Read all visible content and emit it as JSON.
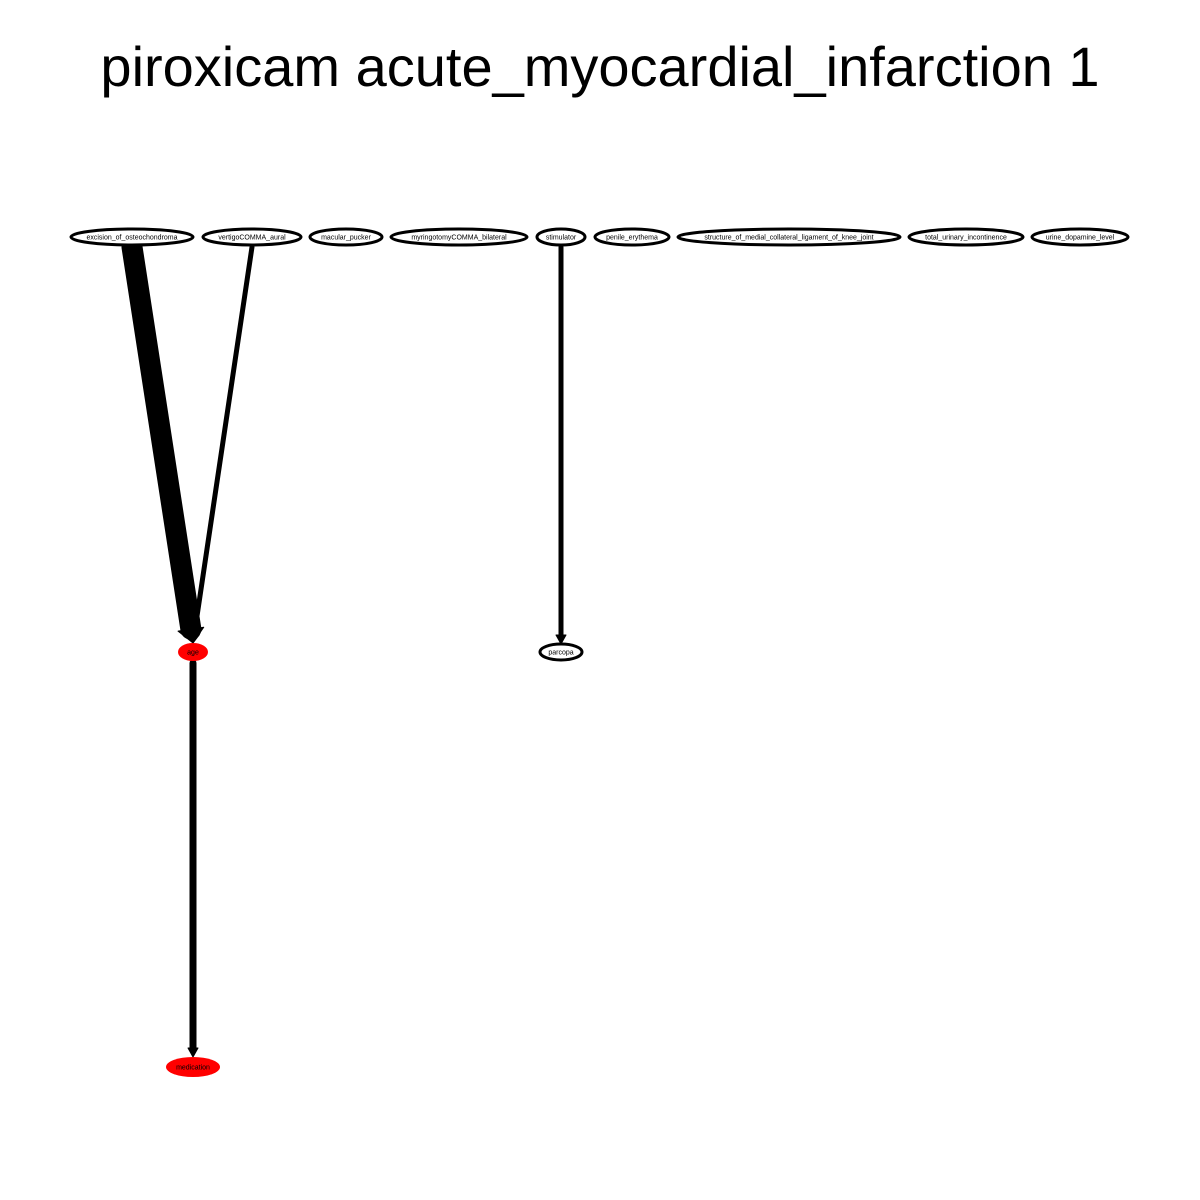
{
  "title": "piroxicam acute_myocardial_infarction 1",
  "colors": {
    "highlight_fill": "#ff0000",
    "default_fill": "#ffffff",
    "stroke": "#000000"
  },
  "nodes": [
    {
      "id": "excision_of_osteochondroma",
      "label": "excision_of_osteochondroma",
      "highlighted": false
    },
    {
      "id": "vertigoCOMMA_aural",
      "label": "vertigoCOMMA_aural",
      "highlighted": false
    },
    {
      "id": "macular_pucker",
      "label": "macular_pucker",
      "highlighted": false
    },
    {
      "id": "myringotomyCOMMA_bilateral",
      "label": "myringotomyCOMMA_bilateral",
      "highlighted": false
    },
    {
      "id": "stimulator",
      "label": "stimulator",
      "highlighted": false
    },
    {
      "id": "penile_erythema",
      "label": "penile_erythema",
      "highlighted": false
    },
    {
      "id": "structure_of_medial_collateral_ligament_of_knee_joint",
      "label": "structure_of_medial_collateral_ligament_of_knee_joint",
      "highlighted": false
    },
    {
      "id": "total_urinary_incontinence",
      "label": "total_urinary_incontinence",
      "highlighted": false
    },
    {
      "id": "urine_dopamine_level",
      "label": "urine_dopamine_level",
      "highlighted": false
    },
    {
      "id": "age",
      "label": "age",
      "highlighted": true
    },
    {
      "id": "parcopa",
      "label": "parcopa",
      "highlighted": false
    },
    {
      "id": "medication",
      "label": "medication",
      "highlighted": true
    }
  ],
  "edges": [
    {
      "from": "excision_of_osteochondroma",
      "to": "age",
      "weight": 10
    },
    {
      "from": "vertigoCOMMA_aural",
      "to": "age",
      "weight": 2
    },
    {
      "from": "stimulator",
      "to": "parcopa",
      "weight": 2
    },
    {
      "from": "age",
      "to": "medication",
      "weight": 3
    }
  ]
}
